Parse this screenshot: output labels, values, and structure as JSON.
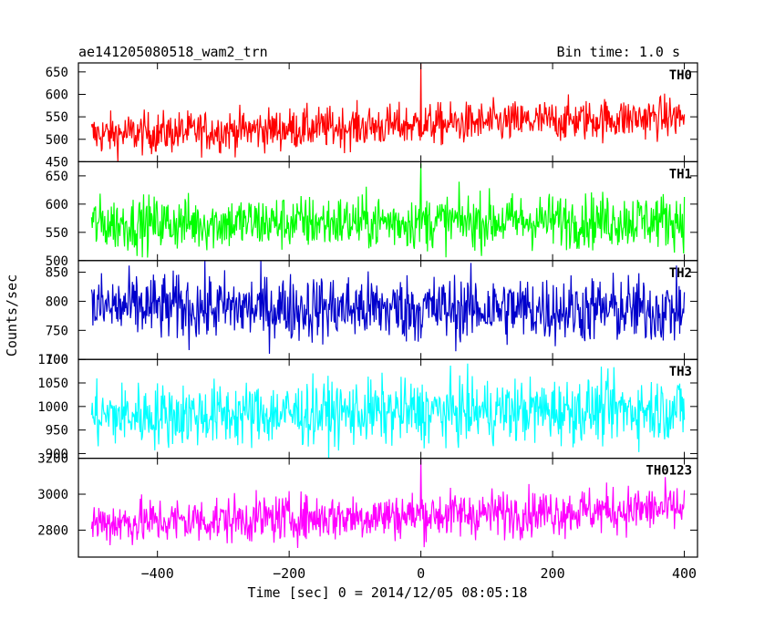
{
  "header": {
    "title": "ae141205080518_wam2_trn",
    "bin_time": "Bin time: 1.0 s"
  },
  "axes": {
    "ylabel": "Counts/sec",
    "xlabel": "Time [sec] 0 = 2014/12/05 08:05:18"
  },
  "chart_data": {
    "type": "line",
    "x_range": [
      -520,
      420
    ],
    "x_ticks": [
      -400,
      -200,
      0,
      200,
      400
    ],
    "x_tick_labels": [
      "−400",
      "−200",
      "0",
      "200",
      "400"
    ],
    "panels": [
      {
        "name": "TH0",
        "color": "#ff0000",
        "ylim": [
          450,
          670
        ],
        "y_ticks": [
          450,
          500,
          550,
          600,
          650
        ],
        "y_tick_labels": [
          "450",
          "500",
          "550",
          "600",
          "650"
        ],
        "x_start": -500,
        "x_end": 400,
        "mean_start": 510,
        "mean_end": 550,
        "noise": 23,
        "spikes": [
          {
            "x": 0,
            "y": 668
          }
        ]
      },
      {
        "name": "TH1",
        "color": "#00ff00",
        "ylim": [
          500,
          675
        ],
        "y_ticks": [
          500,
          550,
          600,
          650
        ],
        "y_tick_labels": [
          "500",
          "550",
          "600",
          "650"
        ],
        "x_start": -500,
        "x_end": 400,
        "mean_start": 565,
        "mean_end": 572,
        "noise": 24,
        "spikes": [
          {
            "x": 0,
            "y": 672
          }
        ]
      },
      {
        "name": "TH2",
        "color": "#0000cc",
        "ylim": [
          700,
          870
        ],
        "y_ticks": [
          700,
          750,
          800,
          850
        ],
        "y_tick_labels": [
          "700",
          "750",
          "800",
          "850"
        ],
        "x_start": -500,
        "x_end": 400,
        "mean_start": 790,
        "mean_end": 785,
        "noise": 29,
        "spikes": []
      },
      {
        "name": "TH3",
        "color": "#00ffff",
        "ylim": [
          890,
          1100
        ],
        "y_ticks": [
          900,
          950,
          1000,
          1050,
          1100
        ],
        "y_tick_labels": [
          "900",
          "950",
          "1000",
          "1050",
          "1100"
        ],
        "x_start": -500,
        "x_end": 400,
        "mean_start": 980,
        "mean_end": 995,
        "noise": 34,
        "spikes": []
      },
      {
        "name": "TH0123",
        "color": "#ff00ff",
        "ylim": [
          2650,
          3200
        ],
        "y_ticks": [
          2800,
          3000,
          3200
        ],
        "y_tick_labels": [
          "2800",
          "3000",
          "3200"
        ],
        "x_start": -500,
        "x_end": 400,
        "mean_start": 2840,
        "mean_end": 2920,
        "noise": 65,
        "spikes": [
          {
            "x": 0,
            "y": 3195
          }
        ]
      }
    ]
  }
}
